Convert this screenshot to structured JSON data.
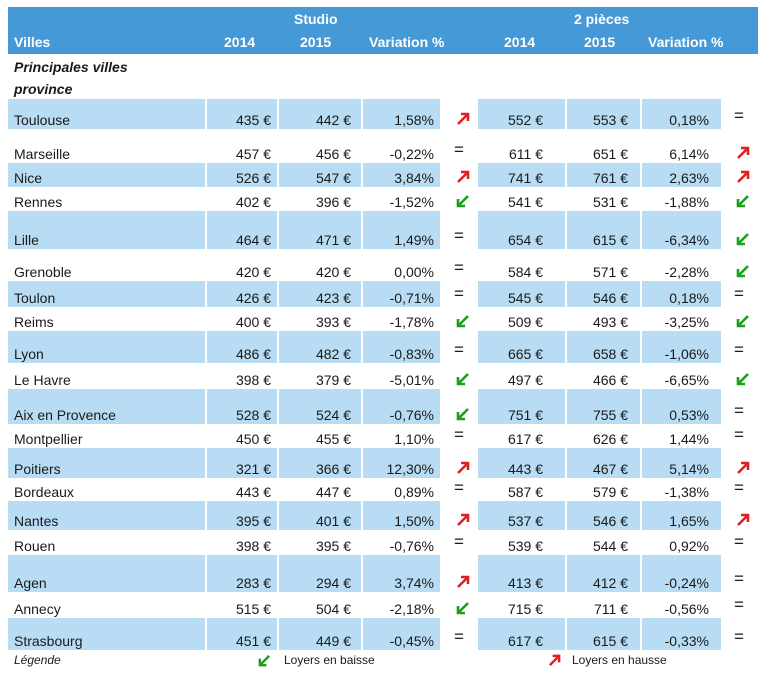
{
  "header": {
    "group_studio": "Studio",
    "group_2p": "2 pièces",
    "col_villes": "Villes",
    "col_s2014": "2014",
    "col_s2015": "2015",
    "col_svar": "Variation %",
    "col_p2014": "2014",
    "col_p2015": "2015",
    "col_pvar": "Variation %"
  },
  "subheader": {
    "line1": "Principales villes",
    "line2": "province"
  },
  "colors": {
    "header": "#4599d6",
    "band": "#b8dcf3",
    "up": "#e02020",
    "down": "#1aa01a"
  },
  "rows": [
    {
      "city": "Toulouse",
      "s2014": "435 €",
      "s2015": "442 €",
      "svar": "1,58%",
      "strend": "up",
      "p2014": "552 €",
      "p2015": "553 €",
      "pvar": "0,18%",
      "ptrend": "eq"
    },
    {
      "city": "Marseille",
      "s2014": "457 €",
      "s2015": "456 €",
      "svar": "-0,22%",
      "strend": "eq",
      "p2014": "611 €",
      "p2015": "651 €",
      "pvar": "6,14%",
      "ptrend": "up"
    },
    {
      "city": "Nice",
      "s2014": "526 €",
      "s2015": "547 €",
      "svar": "3,84%",
      "strend": "up",
      "p2014": "741 €",
      "p2015": "761 €",
      "pvar": "2,63%",
      "ptrend": "up"
    },
    {
      "city": "Rennes",
      "s2014": "402 €",
      "s2015": "396 €",
      "svar": "-1,52%",
      "strend": "down",
      "p2014": "541 €",
      "p2015": "531 €",
      "pvar": "-1,88%",
      "ptrend": "down"
    },
    {
      "city": "Lille",
      "s2014": "464 €",
      "s2015": "471 €",
      "svar": "1,49%",
      "strend": "eq",
      "p2014": "654 €",
      "p2015": "615 €",
      "pvar": "-6,34%",
      "ptrend": "down"
    },
    {
      "city": "Grenoble",
      "s2014": "420 €",
      "s2015": "420 €",
      "svar": "0,00%",
      "strend": "eq",
      "p2014": "584 €",
      "p2015": "571 €",
      "pvar": "-2,28%",
      "ptrend": "down"
    },
    {
      "city": "Toulon",
      "s2014": "426 €",
      "s2015": "423 €",
      "svar": "-0,71%",
      "strend": "eq",
      "p2014": "545 €",
      "p2015": "546 €",
      "pvar": "0,18%",
      "ptrend": "eq"
    },
    {
      "city": "Reims",
      "s2014": "400 €",
      "s2015": "393 €",
      "svar": "-1,78%",
      "strend": "down",
      "p2014": "509 €",
      "p2015": "493 €",
      "pvar": "-3,25%",
      "ptrend": "down"
    },
    {
      "city": "Lyon",
      "s2014": "486 €",
      "s2015": "482 €",
      "svar": "-0,83%",
      "strend": "eq",
      "p2014": "665 €",
      "p2015": "658 €",
      "pvar": "-1,06%",
      "ptrend": "eq"
    },
    {
      "city": "Le Havre",
      "s2014": "398 €",
      "s2015": "379 €",
      "svar": "-5,01%",
      "strend": "down",
      "p2014": "497 €",
      "p2015": "466 €",
      "pvar": "-6,65%",
      "ptrend": "down"
    },
    {
      "city": "Aix en Provence",
      "s2014": "528 €",
      "s2015": "524 €",
      "svar": "-0,76%",
      "strend": "down",
      "p2014": "751 €",
      "p2015": "755 €",
      "pvar": "0,53%",
      "ptrend": "eq"
    },
    {
      "city": "Montpellier",
      "s2014": "450 €",
      "s2015": "455 €",
      "svar": "1,10%",
      "strend": "eq",
      "p2014": "617 €",
      "p2015": "626 €",
      "pvar": "1,44%",
      "ptrend": "eq"
    },
    {
      "city": "Poitiers",
      "s2014": "321 €",
      "s2015": "366 €",
      "svar": "12,30%",
      "strend": "up",
      "p2014": "443 €",
      "p2015": "467 €",
      "pvar": "5,14%",
      "ptrend": "up"
    },
    {
      "city": "Bordeaux",
      "s2014": "443 €",
      "s2015": "447 €",
      "svar": "0,89%",
      "strend": "eq",
      "p2014": "587 €",
      "p2015": "579 €",
      "pvar": "-1,38%",
      "ptrend": "eq"
    },
    {
      "city": "Nantes",
      "s2014": "395 €",
      "s2015": "401 €",
      "svar": "1,50%",
      "strend": "up",
      "p2014": "537 €",
      "p2015": "546 €",
      "pvar": "1,65%",
      "ptrend": "up"
    },
    {
      "city": "Rouen",
      "s2014": "398 €",
      "s2015": "395 €",
      "svar": "-0,76%",
      "strend": "eq",
      "p2014": "539 €",
      "p2015": "544 €",
      "pvar": "0,92%",
      "ptrend": "eq"
    },
    {
      "city": "Agen",
      "s2014": "283 €",
      "s2015": "294 €",
      "svar": "3,74%",
      "strend": "up",
      "p2014": "413 €",
      "p2015": "412 €",
      "pvar": "-0,24%",
      "ptrend": "eq"
    },
    {
      "city": "Annecy",
      "s2014": "515 €",
      "s2015": "504 €",
      "svar": "-2,18%",
      "strend": "down",
      "p2014": "715 €",
      "p2015": "711 €",
      "pvar": "-0,56%",
      "ptrend": "eq"
    },
    {
      "city": "Strasbourg",
      "s2014": "451 €",
      "s2015": "449 €",
      "svar": "-0,45%",
      "strend": "eq",
      "p2014": "617 €",
      "p2015": "615 €",
      "pvar": "-0,33%",
      "ptrend": "eq"
    }
  ],
  "legend": {
    "title": "Légende",
    "down_label": "Loyers en baisse",
    "up_label": "Loyers en hausse"
  },
  "icons": {
    "up": "arrow-up-right-icon",
    "down": "arrow-down-left-icon",
    "eq": "equals-icon"
  }
}
